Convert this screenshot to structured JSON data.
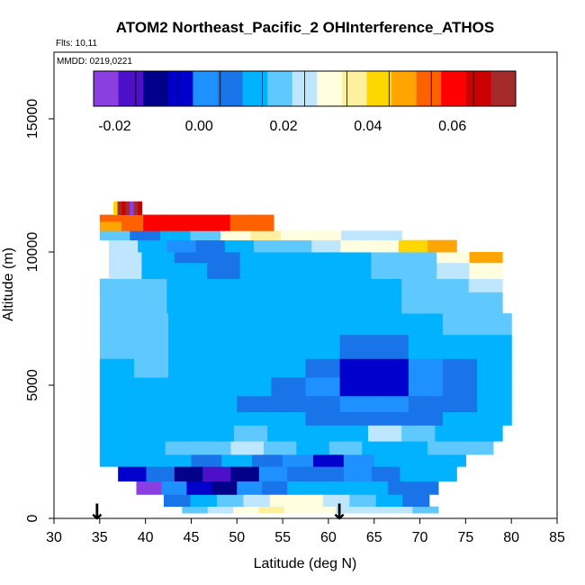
{
  "chart_data": {
    "type": "heatmap",
    "title": "ATOM2 Northeast_Pacific_2 OHInterference_ATHOS",
    "flights_label": "Flts: 10,11",
    "dates_label": "MMDD: 0219,0221",
    "xlabel": "Latitude (deg N)",
    "ylabel": "Altitude (m)",
    "xlim": [
      30,
      85
    ],
    "ylim": [
      0,
      17500
    ],
    "x_ticks": [
      30,
      35,
      40,
      45,
      50,
      55,
      60,
      65,
      70,
      75,
      80,
      85
    ],
    "y_ticks": [
      0,
      5000,
      10000,
      15000
    ],
    "colorbar": {
      "range": [
        -0.025,
        0.075
      ],
      "tick_values": [
        -0.02,
        0.0,
        0.02,
        0.04,
        0.06
      ],
      "tick_labels": [
        "-0.02",
        "0.00",
        "0.02",
        "0.04",
        "0.06"
      ],
      "colors": [
        "#8B3FE0",
        "#4B10C8",
        "#00008B",
        "#0000CD",
        "#1E90FF",
        "#1874E8",
        "#00B2FF",
        "#5FC8FF",
        "#BFE6FF",
        "#FFFFE0",
        "#FFF0A0",
        "#FFD700",
        "#FFA500",
        "#FF6000",
        "#FF0000",
        "#CC0000",
        "#A52A2A"
      ]
    },
    "markers": [
      {
        "label": "↓",
        "latitude": 34.7
      },
      {
        "label": "↓",
        "latitude": 61.2
      }
    ],
    "bands": [
      {
        "alt": [
          200,
          450
        ],
        "lat": [
          44,
          72
        ],
        "values": [
          0.02,
          0.025,
          0.03,
          0.035,
          0.033,
          0.028,
          0.026,
          0.025,
          0.025,
          0.022
        ]
      },
      {
        "alt": [
          450,
          900
        ],
        "lat": [
          42,
          71
        ],
        "values": [
          0.01,
          0.012,
          0.018,
          0.025,
          0.03,
          0.028,
          0.025,
          0.02,
          0.015,
          0.005
        ]
      },
      {
        "alt": [
          900,
          1400
        ],
        "lat": [
          39,
          72
        ],
        "values": [
          -0.02,
          0.0,
          -0.005,
          -0.01,
          0.0,
          0.005,
          0.012,
          0.015,
          0.014,
          0.012,
          0.01,
          0.008
        ]
      },
      {
        "alt": [
          1400,
          1950
        ],
        "lat": [
          37,
          74
        ],
        "values": [
          -0.005,
          0.005,
          -0.008,
          -0.015,
          -0.012,
          0.002,
          0.008,
          0.01,
          0.003,
          0.005,
          0.012,
          0.015
        ]
      },
      {
        "alt": [
          1950,
          2400
        ],
        "lat": [
          35,
          75
        ],
        "values": [
          0.014,
          0.015,
          0.013,
          0.01,
          0.012,
          0.008,
          0.0,
          -0.005,
          0.003,
          0.012,
          0.014,
          0.016
        ]
      },
      {
        "alt": [
          2400,
          2900
        ],
        "lat": [
          35,
          78
        ],
        "values": [
          0.014,
          0.016,
          0.018,
          0.02,
          0.025,
          0.02,
          0.016,
          0.02,
          0.015,
          0.016,
          0.017,
          0.018
        ]
      },
      {
        "alt": [
          2900,
          3500
        ],
        "lat": [
          35,
          79
        ],
        "values": [
          0.014,
          0.015,
          0.013,
          0.015,
          0.018,
          0.015,
          0.016,
          0.012,
          0.025,
          0.02,
          0.016,
          0.015
        ]
      },
      {
        "alt": [
          3500,
          4000
        ],
        "lat": [
          35,
          80
        ],
        "values": [
          0.015,
          0.016,
          0.014,
          0.012,
          0.014,
          0.013,
          0.01,
          0.008,
          0.006,
          0.008,
          0.012,
          0.014
        ]
      },
      {
        "alt": [
          4000,
          4600
        ],
        "lat": [
          35,
          80
        ],
        "values": [
          0.016,
          0.015,
          0.014,
          0.012,
          0.01,
          0.008,
          0.006,
          0.004,
          0.004,
          0.006,
          0.01,
          0.014
        ]
      },
      {
        "alt": [
          4600,
          5300
        ],
        "lat": [
          35,
          80
        ],
        "values": [
          0.016,
          0.016,
          0.015,
          0.014,
          0.012,
          0.01,
          0.004,
          -0.004,
          -0.006,
          0.0,
          0.008,
          0.012
        ]
      },
      {
        "alt": [
          5300,
          6000
        ],
        "lat": [
          35,
          80
        ],
        "values": [
          0.016,
          0.017,
          0.016,
          0.015,
          0.014,
          0.012,
          0.007,
          -0.002,
          -0.004,
          0.002,
          0.009,
          0.013
        ]
      },
      {
        "alt": [
          6000,
          6900
        ],
        "lat": [
          35,
          80
        ],
        "values": [
          0.017,
          0.017,
          0.016,
          0.015,
          0.014,
          0.013,
          0.011,
          0.008,
          0.01,
          0.012,
          0.013,
          0.014
        ]
      },
      {
        "alt": [
          6900,
          7700
        ],
        "lat": [
          35,
          80
        ],
        "values": [
          0.018,
          0.017,
          0.016,
          0.015,
          0.016,
          0.015,
          0.014,
          0.014,
          0.015,
          0.016,
          0.017,
          0.018
        ]
      },
      {
        "alt": [
          7700,
          8500
        ],
        "lat": [
          35,
          79
        ],
        "values": [
          0.02,
          0.018,
          0.016,
          0.015,
          0.014,
          0.013,
          0.014,
          0.015,
          0.016,
          0.017,
          0.019,
          0.022
        ]
      },
      {
        "alt": [
          8500,
          9000
        ],
        "lat": [
          35,
          79
        ],
        "values": [
          0.022,
          0.017,
          0.014,
          0.013,
          0.012,
          0.013,
          0.014,
          0.015,
          0.016,
          0.018,
          0.02,
          0.026
        ]
      },
      {
        "alt": [
          9000,
          9600
        ],
        "lat": [
          36,
          79
        ],
        "values": [
          0.024,
          0.016,
          0.012,
          0.01,
          0.012,
          0.014,
          0.015,
          0.016,
          0.018,
          0.02,
          0.024,
          0.032
        ]
      },
      {
        "alt": [
          9600,
          10000
        ],
        "lat": [
          36,
          79
        ],
        "values": [
          0.026,
          0.014,
          0.008,
          0.009,
          0.011,
          0.013,
          0.014,
          0.016,
          0.02,
          0.022,
          0.028,
          0.05
        ]
      },
      {
        "alt": [
          10000,
          10450
        ],
        "lat": [
          36,
          74
        ],
        "values": [
          0.025,
          0.012,
          0.0,
          0.008,
          0.014,
          0.018,
          0.02,
          0.024,
          0.028,
          0.032,
          0.04,
          0.048
        ]
      },
      {
        "alt": [
          10450,
          10800
        ],
        "lat": [
          35,
          68
        ],
        "values": [
          0.02,
          0.01,
          0.012,
          0.022,
          0.03,
          0.034,
          0.03,
          0.028,
          0.026,
          0.025
        ]
      },
      {
        "alt": [
          10800,
          11150
        ],
        "lat": [
          35,
          54
        ],
        "values": [
          0.05,
          0.055,
          0.058,
          0.06,
          0.06,
          0.058,
          0.056,
          0.055
        ]
      },
      {
        "alt": [
          11150,
          11400
        ],
        "lat": [
          35,
          54
        ],
        "values": [
          0.052,
          0.056,
          0.058,
          0.06,
          0.06,
          0.058,
          0.056,
          0.055
        ]
      },
      {
        "alt": [
          11400,
          11900
        ],
        "lat": [
          36.5,
          39.6
        ],
        "values": [
          0.042,
          0.07,
          0.065,
          0.072,
          -0.025,
          0.072,
          0.065
        ]
      }
    ]
  }
}
